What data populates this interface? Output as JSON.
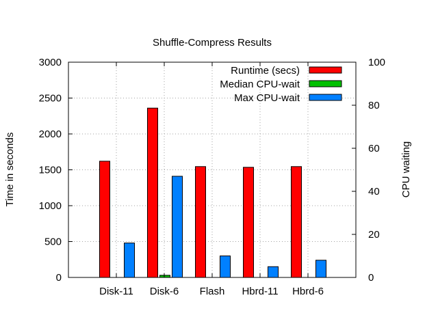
{
  "chart_data": {
    "type": "bar",
    "title": "Shuffle-Compress Results",
    "ylabel": "Time in seconds",
    "y2label": "CPU waiting",
    "categories": [
      "Disk-11",
      "Disk-6",
      "Flash",
      "Hbrd-11",
      "Hbrd-6"
    ],
    "ylim": [
      0,
      3000
    ],
    "y2lim": [
      0,
      100
    ],
    "yticks": [
      0,
      500,
      1000,
      1500,
      2000,
      2500,
      3000
    ],
    "y2ticks": [
      0,
      20,
      40,
      60,
      80,
      100
    ],
    "grid": true,
    "legend_position": "top-right",
    "series": [
      {
        "name": "Runtime (secs)",
        "axis": "y",
        "color": "#ff0000",
        "values": [
          1620,
          2360,
          1545,
          1535,
          1545
        ]
      },
      {
        "name": "Median CPU-wait",
        "axis": "y2",
        "color": "#00c000",
        "values": [
          0,
          1,
          0,
          0,
          0
        ]
      },
      {
        "name": "Max CPU-wait",
        "axis": "y2",
        "color": "#0080ff",
        "values": [
          16,
          47,
          10,
          5,
          8
        ]
      }
    ]
  }
}
